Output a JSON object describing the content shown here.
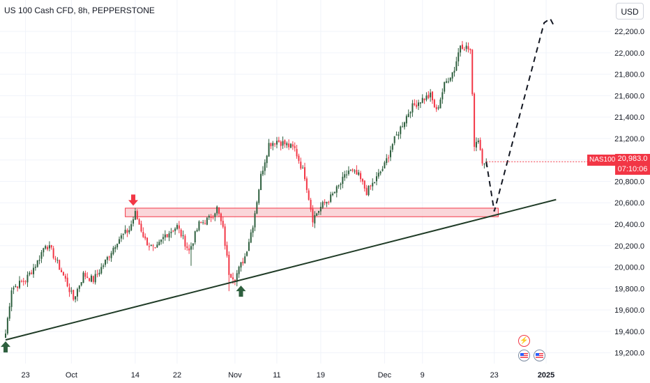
{
  "header": {
    "title": "US 100 Cash CFD, 8h, PEPPERSTONE",
    "currency": "USD"
  },
  "price_label": {
    "symbol": "NAS100",
    "price": "20,983.0",
    "countdown": "07:10:06"
  },
  "colors": {
    "up": "#2e5f3e",
    "down": "#f23645",
    "zone_fill": "#f8c8cc",
    "zone_stroke": "#f23645",
    "trend": "#1f3b26",
    "arrow_up": "#2e5f3e",
    "arrow_down": "#f23645"
  },
  "icons": {
    "event_flash": "lightning-icon",
    "event_us": "us-flag-icon"
  },
  "chart_data": {
    "type": "candlestick",
    "title": "US 100 Cash CFD, 8h, PEPPERSTONE",
    "timeframe": "8h",
    "ylim": [
      19100,
      22350
    ],
    "y_ticks": [
      19200,
      19400,
      19600,
      19800,
      20000,
      20200,
      20400,
      20600,
      20800,
      21000,
      21200,
      21400,
      21600,
      21800,
      22000,
      22200
    ],
    "y_tick_labels": [
      "19,200.0",
      "19,400.0",
      "19,600.0",
      "19,800.0",
      "20,000.0",
      "20,200.0",
      "20,400.0",
      "20,600.0",
      "20,800.0",
      "21,000.0",
      "21,200.0",
      "21,400.0",
      "21,600.0",
      "21,800.0",
      "22,000.0",
      "22,200.0"
    ],
    "x_tick_labels": [
      {
        "label": "23",
        "bar": 10
      },
      {
        "label": "Oct",
        "bar": 33
      },
      {
        "label": "14",
        "bar": 65
      },
      {
        "label": "22",
        "bar": 86
      },
      {
        "label": "Nov",
        "bar": 115
      },
      {
        "label": "11",
        "bar": 136
      },
      {
        "label": "19",
        "bar": 158
      },
      {
        "label": "Dec",
        "bar": 190
      },
      {
        "label": "9",
        "bar": 209
      },
      {
        "label": "23",
        "bar": 245
      },
      {
        "label": "2025",
        "bar": 271
      }
    ],
    "anchors": [
      [
        0,
        19380
      ],
      [
        3,
        19800
      ],
      [
        10,
        19880
      ],
      [
        16,
        20050
      ],
      [
        20,
        20220
      ],
      [
        23,
        20150
      ],
      [
        30,
        19880
      ],
      [
        34,
        19700
      ],
      [
        39,
        19930
      ],
      [
        44,
        19880
      ],
      [
        50,
        20050
      ],
      [
        56,
        20250
      ],
      [
        62,
        20350
      ],
      [
        65,
        20500
      ],
      [
        70,
        20250
      ],
      [
        75,
        20150
      ],
      [
        80,
        20300
      ],
      [
        86,
        20380
      ],
      [
        92,
        20150
      ],
      [
        97,
        20400
      ],
      [
        102,
        20450
      ],
      [
        106,
        20550
      ],
      [
        109,
        20350
      ],
      [
        112,
        19950
      ],
      [
        115,
        19900
      ],
      [
        120,
        20100
      ],
      [
        124,
        20400
      ],
      [
        128,
        20850
      ],
      [
        132,
        21150
      ],
      [
        136,
        21180
      ],
      [
        140,
        21150
      ],
      [
        145,
        21100
      ],
      [
        150,
        20850
      ],
      [
        154,
        20450
      ],
      [
        158,
        20560
      ],
      [
        163,
        20650
      ],
      [
        167,
        20750
      ],
      [
        172,
        20900
      ],
      [
        177,
        20850
      ],
      [
        181,
        20700
      ],
      [
        185,
        20800
      ],
      [
        190,
        20950
      ],
      [
        194,
        21150
      ],
      [
        198,
        21300
      ],
      [
        203,
        21480
      ],
      [
        208,
        21560
      ],
      [
        213,
        21600
      ],
      [
        216,
        21450
      ],
      [
        220,
        21700
      ],
      [
        225,
        21850
      ],
      [
        228,
        22080
      ],
      [
        231,
        22050
      ],
      [
        233,
        22020
      ],
      [
        235,
        21150
      ],
      [
        237,
        21200
      ],
      [
        239,
        21000
      ],
      [
        241,
        20980
      ]
    ],
    "last_price": 20983.0,
    "zone": {
      "from_bar": 60,
      "to_bar": 247,
      "low": 20470,
      "high": 20550
    },
    "trendline": {
      "from": [
        0,
        19320
      ],
      "to": [
        276,
        20630
      ]
    },
    "projection": [
      [
        241,
        20983
      ],
      [
        245,
        20520
      ],
      [
        270,
        22280
      ],
      [
        273,
        22320
      ],
      [
        275,
        22250
      ]
    ],
    "arrows": [
      {
        "direction": "up",
        "bar": 0,
        "price": 19320
      },
      {
        "direction": "up",
        "bar": 118,
        "price": 19840
      },
      {
        "direction": "down",
        "bar": 64,
        "price": 20560
      }
    ]
  }
}
